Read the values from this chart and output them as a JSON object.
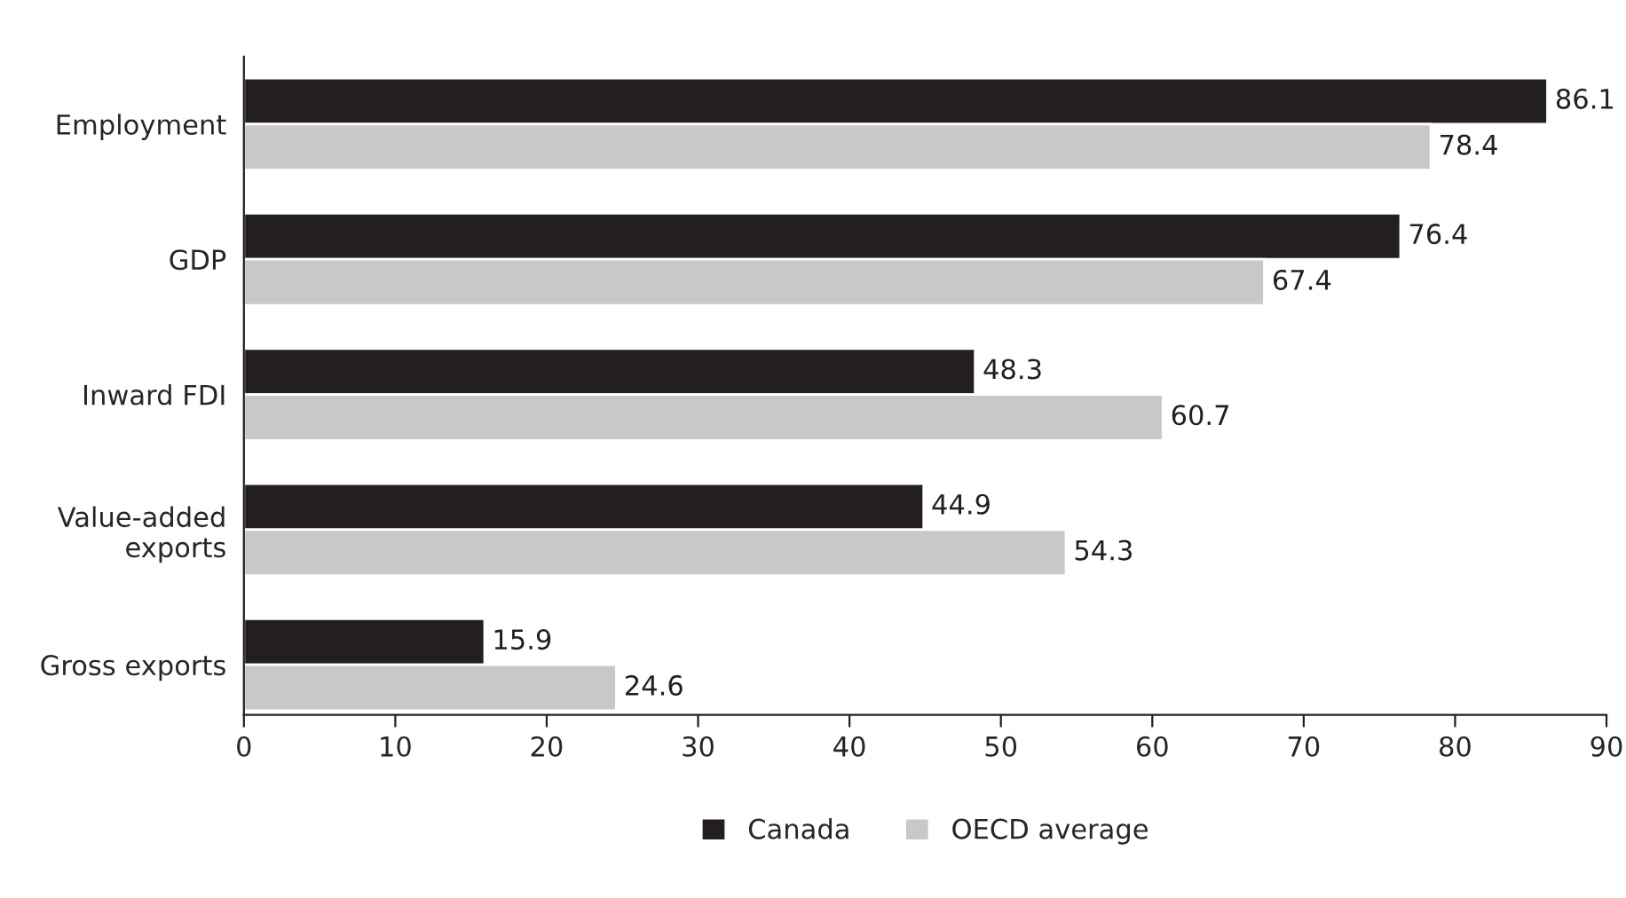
{
  "chart_data": {
    "type": "bar",
    "orientation": "horizontal",
    "categories": [
      "Employment",
      "GDP",
      "Inward FDI",
      "Value-added\nexports",
      "Gross exports"
    ],
    "series": [
      {
        "name": "Canada",
        "color": "#231f20",
        "values": [
          86.1,
          76.4,
          48.3,
          44.9,
          15.9
        ]
      },
      {
        "name": "OECD average",
        "color": "#c8c8c8",
        "values": [
          78.4,
          67.4,
          60.7,
          54.3,
          24.6
        ]
      }
    ],
    "xlim": [
      0,
      90
    ],
    "xticks": [
      0,
      10,
      20,
      30,
      40,
      50,
      60,
      70,
      80,
      90
    ],
    "data_labels": true,
    "grid": false,
    "legend": "bottom"
  }
}
